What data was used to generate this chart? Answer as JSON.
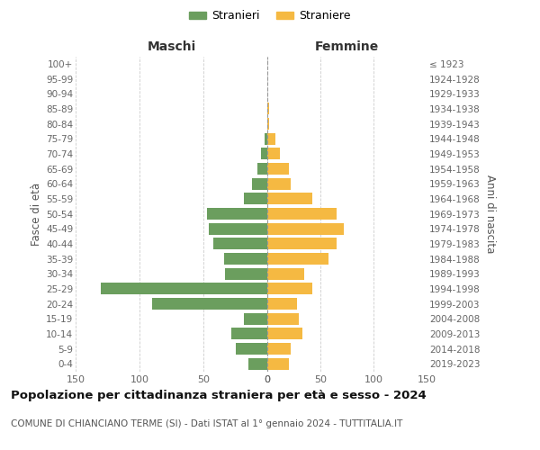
{
  "age_groups": [
    "0-4",
    "5-9",
    "10-14",
    "15-19",
    "20-24",
    "25-29",
    "30-34",
    "35-39",
    "40-44",
    "45-49",
    "50-54",
    "55-59",
    "60-64",
    "65-69",
    "70-74",
    "75-79",
    "80-84",
    "85-89",
    "90-94",
    "95-99",
    "100+"
  ],
  "birth_years": [
    "2019-2023",
    "2014-2018",
    "2009-2013",
    "2004-2008",
    "1999-2003",
    "1994-1998",
    "1989-1993",
    "1984-1988",
    "1979-1983",
    "1974-1978",
    "1969-1973",
    "1964-1968",
    "1959-1963",
    "1954-1958",
    "1949-1953",
    "1944-1948",
    "1939-1943",
    "1934-1938",
    "1929-1933",
    "1924-1928",
    "≤ 1923"
  ],
  "males": [
    15,
    25,
    28,
    18,
    90,
    130,
    33,
    34,
    42,
    46,
    47,
    18,
    12,
    8,
    5,
    2,
    0,
    0,
    0,
    0,
    0
  ],
  "females": [
    20,
    22,
    33,
    30,
    28,
    42,
    35,
    58,
    65,
    72,
    65,
    42,
    22,
    20,
    12,
    8,
    2,
    2,
    0,
    0,
    0
  ],
  "male_color": "#6b9e5e",
  "female_color": "#f5b942",
  "background_color": "#ffffff",
  "grid_color": "#cccccc",
  "title": "Popolazione per cittadinanza straniera per età e sesso - 2024",
  "subtitle": "COMUNE DI CHIANCIANO TERME (SI) - Dati ISTAT al 1° gennaio 2024 - TUTTITALIA.IT",
  "left_header": "Maschi",
  "right_header": "Femmine",
  "left_ylabel": "Fasce di età",
  "right_ylabel": "Anni di nascita",
  "legend_male": "Stranieri",
  "legend_female": "Straniere",
  "xlim": 150
}
